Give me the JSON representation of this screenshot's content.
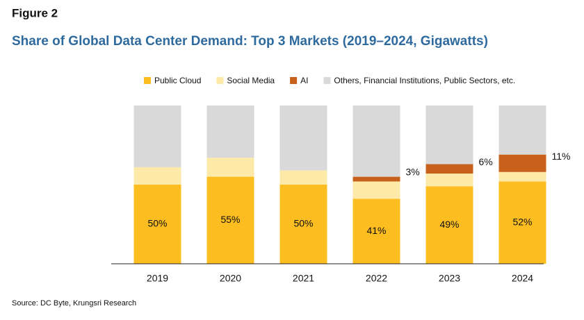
{
  "chart_data": {
    "type": "stacked_bar",
    "figure_label": "Figure 2",
    "title": "Share of Global Data Center Demand: Top 3 Markets (2019–2024, Gigawatts)",
    "source": "Source: DC Byte, Krungsri Research",
    "categories": [
      "2019",
      "2020",
      "2021",
      "2022",
      "2023",
      "2024"
    ],
    "ylim": [
      0,
      100
    ],
    "series": [
      {
        "name": "Public Cloud",
        "color": "#fbbd1f",
        "values": [
          50,
          55,
          50,
          41,
          49,
          52
        ],
        "value_labels": [
          "50%",
          "55%",
          "50%",
          "41%",
          "49%",
          "52%"
        ]
      },
      {
        "name": "Social Media",
        "color": "#fde9a8",
        "values": [
          11,
          12,
          9,
          11,
          8,
          6
        ]
      },
      {
        "name": "AI",
        "color": "#c8611c",
        "values": [
          0,
          0,
          0,
          3,
          6,
          11
        ],
        "value_labels": [
          null,
          null,
          null,
          "3%",
          "6%",
          "11%"
        ]
      },
      {
        "name": "Others, Financial Institutions, Public Sectors, etc.",
        "color": "#d9d9d9",
        "values": [
          39,
          33,
          41,
          45,
          37,
          31
        ]
      }
    ]
  }
}
